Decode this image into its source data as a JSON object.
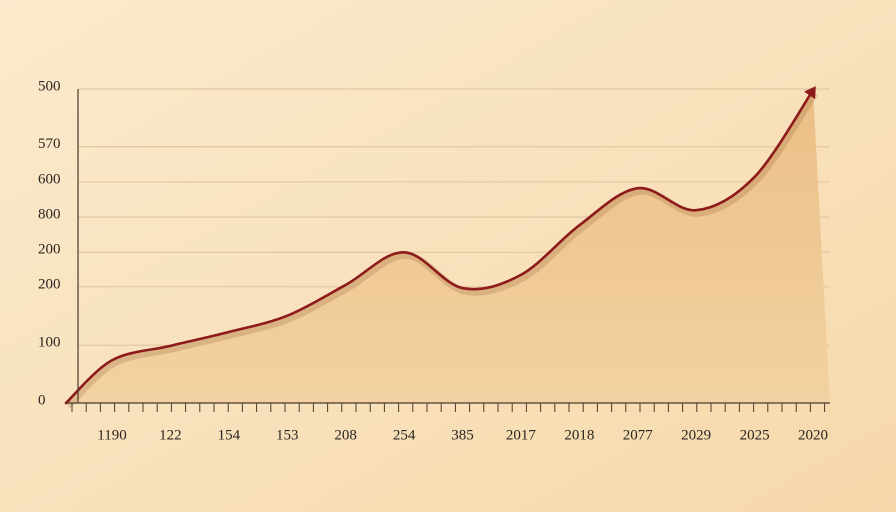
{
  "chart_data": {
    "type": "line",
    "categories": [
      null,
      "1190",
      "122",
      "154",
      "153",
      "208",
      "254",
      "385",
      "2017",
      "2018",
      "2077",
      "2029",
      "2025",
      "2020"
    ],
    "values": [
      0,
      68,
      91,
      113,
      139,
      188,
      240,
      183,
      204,
      283,
      342,
      307,
      360,
      498
    ],
    "color": "#8e1b1b",
    "fill": "#efc892",
    "ylim": [
      0,
      500
    ],
    "yticks": [
      0,
      {
        "value": 92,
        "label": "100"
      },
      {
        "value": 185,
        "label": "200"
      },
      {
        "value": 240,
        "label": "200"
      },
      {
        "value": 296,
        "label": "800"
      },
      {
        "value": 352,
        "label": "600"
      },
      {
        "value": 408,
        "label": "570"
      },
      500
    ],
    "grid": true
  }
}
